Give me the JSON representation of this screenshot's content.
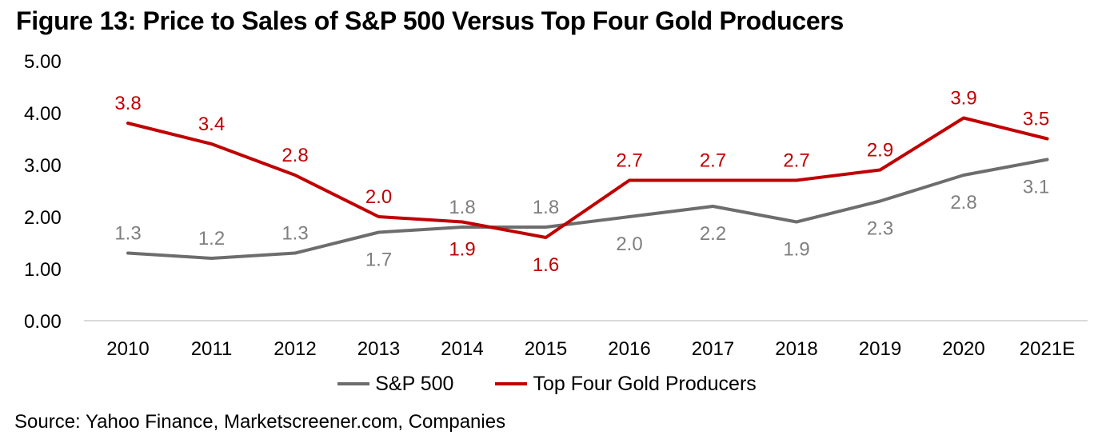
{
  "title": "Figure 13: Price to Sales of S&P 500 Versus Top Four Gold Producers",
  "source": "Source: Yahoo Finance, Marketscreener.com, Companies",
  "legend": {
    "items": [
      {
        "label": "S&P 500",
        "color": "#6d6d6d"
      },
      {
        "label": "Top Four Gold Producers",
        "color": "#c00000"
      }
    ]
  },
  "chart_data": {
    "type": "line",
    "title": "Figure 13: Price to Sales of S&P 500 Versus Top Four Gold Producers",
    "categories": [
      "2010",
      "2011",
      "2012",
      "2013",
      "2014",
      "2015",
      "2016",
      "2017",
      "2018",
      "2019",
      "2020",
      "2021E"
    ],
    "series": [
      {
        "name": "S&P 500",
        "color": "#6d6d6d",
        "label_color": "#7f7f7f",
        "values": [
          1.3,
          1.2,
          1.3,
          1.7,
          1.8,
          1.8,
          2.0,
          2.2,
          1.9,
          2.3,
          2.8,
          3.1
        ],
        "label_positions": [
          "above",
          "above",
          "above",
          "below",
          "above",
          "above",
          "below",
          "below",
          "below",
          "below",
          "below",
          "below"
        ]
      },
      {
        "name": "Top Four Gold Producers",
        "color": "#c00000",
        "label_color": "#c00000",
        "values": [
          3.8,
          3.4,
          2.8,
          2.0,
          1.9,
          1.6,
          2.7,
          2.7,
          2.7,
          2.9,
          3.9,
          3.5
        ],
        "label_positions": [
          "above",
          "above",
          "above",
          "above",
          "below",
          "below",
          "above",
          "above",
          "above",
          "above",
          "above",
          "above"
        ]
      }
    ],
    "yticks": [
      {
        "value": 0,
        "label": "0.00"
      },
      {
        "value": 1,
        "label": "1.00"
      },
      {
        "value": 2,
        "label": "2.00"
      },
      {
        "value": 3,
        "label": "3.00"
      },
      {
        "value": 4,
        "label": "4.00"
      },
      {
        "value": 5,
        "label": "5.00"
      }
    ],
    "ylim": [
      0,
      5
    ],
    "xlabel": "",
    "ylabel": "",
    "grid": false,
    "axis_color": "#d9d9d9",
    "legend_position": "bottom"
  }
}
